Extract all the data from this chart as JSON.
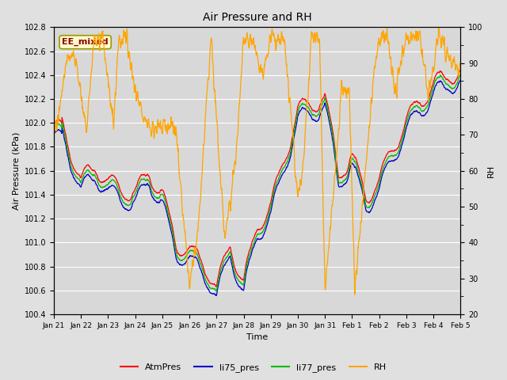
{
  "title": "Air Pressure and RH",
  "xlabel": "Time",
  "ylabel_left": "Air Pressure (kPa)",
  "ylabel_right": "RH",
  "ylim_left": [
    100.4,
    102.8
  ],
  "ylim_right": [
    20,
    100
  ],
  "yticks_left": [
    100.4,
    100.6,
    100.8,
    101.0,
    101.2,
    101.4,
    101.6,
    101.8,
    102.0,
    102.2,
    102.4,
    102.6,
    102.8
  ],
  "yticks_right": [
    20,
    30,
    40,
    50,
    60,
    70,
    80,
    90,
    100
  ],
  "fig_bg": "#e0e0e0",
  "plot_bg": "#d8d8d8",
  "grid_color": "#ffffff",
  "annotation_text": "EE_mixed",
  "annotation_color": "#8b0000",
  "annotation_bg": "#fffacd",
  "annotation_edge": "#999900",
  "colors": {
    "AtmPres": "#ff0000",
    "li75_pres": "#0000cc",
    "li77_pres": "#00bb00",
    "RH": "#ffa500"
  },
  "xtick_labels": [
    "Jan 21",
    "Jan 22",
    "Jan 23",
    "Jan 24",
    "Jan 25",
    "Jan 26",
    "Jan 27",
    "Jan 28",
    "Jan 29",
    "Jan 30",
    "Jan 31",
    "Feb 1",
    "Feb 2",
    "Feb 3",
    "Feb 4",
    "Feb 5"
  ],
  "xtick_pos": [
    0,
    1,
    2,
    3,
    4,
    5,
    6,
    7,
    8,
    9,
    10,
    11,
    12,
    13,
    14,
    15
  ]
}
